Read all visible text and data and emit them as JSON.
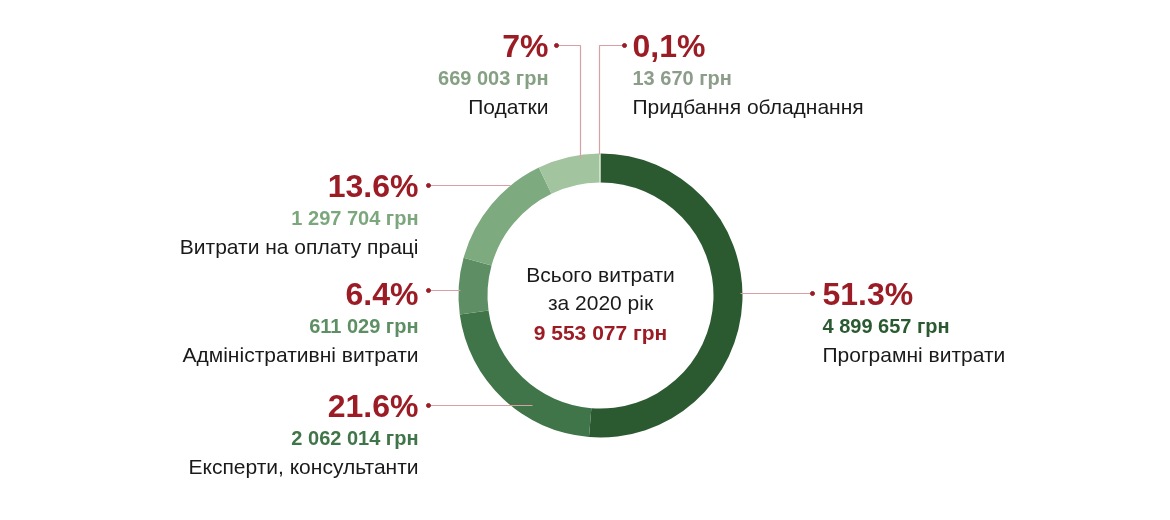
{
  "chart_data": {
    "type": "donut",
    "title": "Всього витрати за 2020 рік",
    "subtitle": "9 553 077 грн",
    "categories": [
      "Програмні витрати",
      "Експерти, консультанти",
      "Адміністративні витрати",
      "Витрати на оплату праці",
      "Податки",
      "Придбання обладнання"
    ],
    "values": [
      4899657,
      2062014,
      611029,
      1297704,
      669003,
      13670
    ],
    "colors": [
      "#2b5a31",
      "#3f7548",
      "#5e8f64",
      "#7eaa7f",
      "#a2c49f",
      "#c6dec2"
    ],
    "value_labels": [
      "4 899 657 грн",
      "2 062 014 грн",
      "611 029 грн",
      "1 297 704 грн",
      "669 003 грн",
      "13 670 грн"
    ],
    "annotations": [
      "51.3%",
      "21.6%",
      "6.4%",
      "13.6%",
      "7%",
      "0,1%"
    ]
  }
}
